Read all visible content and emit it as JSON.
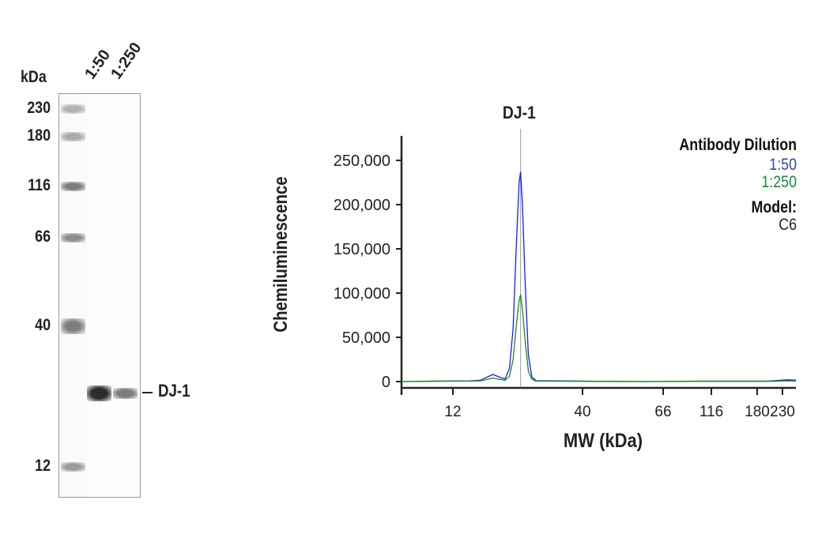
{
  "gel": {
    "unit_label": "kDa",
    "lane_labels": [
      "1:50",
      "1:250"
    ],
    "ladder": [
      {
        "label": "230",
        "kda": 230,
        "intensity": 0.35
      },
      {
        "label": "180",
        "kda": 180,
        "intensity": 0.4
      },
      {
        "label": "116",
        "kda": 116,
        "intensity": 0.7
      },
      {
        "label": "66",
        "kda": 66,
        "intensity": 0.6
      },
      {
        "label": "40",
        "kda": 40,
        "intensity": 0.7
      },
      {
        "label": "12",
        "kda": 12,
        "intensity": 0.5
      }
    ],
    "target_label": "DJ-1",
    "target_band_intensity": [
      0.95,
      0.55
    ]
  },
  "chart_data": {
    "type": "line",
    "title": "DJ-1",
    "xlabel": "MW (kDa)",
    "ylabel": "Chemiluminescence",
    "x_ticks": [
      12,
      40,
      66,
      116,
      180,
      230
    ],
    "x_tick_labels": [
      "12",
      "40",
      "66",
      "116",
      "180",
      "230"
    ],
    "xlim": [
      7.5,
      260
    ],
    "y_ticks": [
      0,
      50000,
      100000,
      150000,
      200000,
      250000
    ],
    "y_tick_labels": [
      "0",
      "50,000",
      "100,000",
      "150,000",
      "200,000",
      "250,000"
    ],
    "ylim": [
      0,
      270000
    ],
    "marker_line_x": 22.5,
    "grid": false,
    "legend": {
      "title": "Antibody Dilution",
      "placement": "top-right",
      "model_label": "Model:",
      "model_value": "C6"
    },
    "series": [
      {
        "name": "1:50",
        "color": "#1a1aff",
        "label_color": "#2e4a9e",
        "x": [
          7.5,
          10,
          14,
          15.5,
          16.5,
          17.4,
          18.5,
          19.5,
          20.3,
          21,
          21.6,
          22.2,
          22.5,
          22.9,
          23.5,
          24.2,
          25,
          26,
          40,
          60,
          100,
          200,
          240,
          260
        ],
        "y": [
          0,
          500,
          800,
          1500,
          5000,
          8000,
          5000,
          3000,
          15000,
          60000,
          150000,
          225000,
          237000,
          200000,
          110000,
          30000,
          5000,
          1000,
          500,
          0,
          500,
          500,
          2000,
          1500
        ]
      },
      {
        "name": "1:250",
        "color": "#1a8a1a",
        "label_color": "#128a3c",
        "x": [
          7.5,
          10,
          14,
          15.5,
          16.5,
          17.4,
          18.5,
          19.5,
          20.3,
          21,
          21.6,
          22.2,
          22.5,
          22.9,
          23.5,
          24.2,
          25,
          26,
          40,
          60,
          100,
          200,
          240,
          260
        ],
        "y": [
          0,
          300,
          500,
          800,
          2500,
          4000,
          2500,
          1500,
          6000,
          25000,
          62000,
          92000,
          98000,
          82000,
          45000,
          12000,
          2500,
          500,
          300,
          0,
          300,
          300,
          800,
          600
        ]
      }
    ]
  }
}
